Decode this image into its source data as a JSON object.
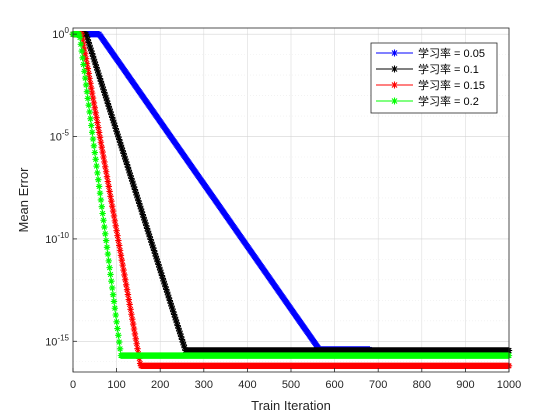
{
  "chart_data": {
    "type": "line",
    "xlabel": "Train Iteration",
    "ylabel": "Mean Error",
    "xlim": [
      0,
      1000
    ],
    "ylim_log10": [
      -16.5,
      0.3
    ],
    "yscale": "log",
    "grid": true,
    "minor_grid": true,
    "legend_position": "top-right",
    "x_ticks": [
      "0",
      "100",
      "200",
      "300",
      "400",
      "500",
      "600",
      "700",
      "800",
      "900",
      "1000"
    ],
    "y_ticks": [
      {
        "exp": 0,
        "base": "10",
        "sup": "0"
      },
      {
        "exp": -5,
        "base": "10",
        "sup": "-5"
      },
      {
        "exp": -10,
        "base": "10",
        "sup": "-10"
      },
      {
        "exp": -15,
        "base": "10",
        "sup": "-15"
      }
    ],
    "marker": "*",
    "series": [
      {
        "name": "学习率 = 0.05",
        "color": "#0000ff",
        "start": 0,
        "plateau_end": 60,
        "drop_end": 565,
        "drop_end_log10": -15.4,
        "floor_log10": -15.4,
        "floor_until": 680
      },
      {
        "name": "学习率 = 0.1",
        "color": "#000000",
        "start": 0,
        "plateau_end": 30,
        "drop_end": 258,
        "drop_end_log10": -15.45,
        "floor_log10": -15.45,
        "floor_until": 1000
      },
      {
        "name": "学习率 = 0.15",
        "color": "#ff0000",
        "start": 0,
        "plateau_end": 20,
        "drop_end": 155,
        "drop_end_log10": -16.2,
        "floor_log10": -16.2,
        "floor_until": 1000
      },
      {
        "name": "学习率 = 0.2",
        "color": "#00ff00",
        "start": 0,
        "plateau_end": 15,
        "drop_end": 110,
        "drop_end_log10": -15.7,
        "floor_log10": -15.7,
        "floor_until": 1000
      }
    ]
  }
}
